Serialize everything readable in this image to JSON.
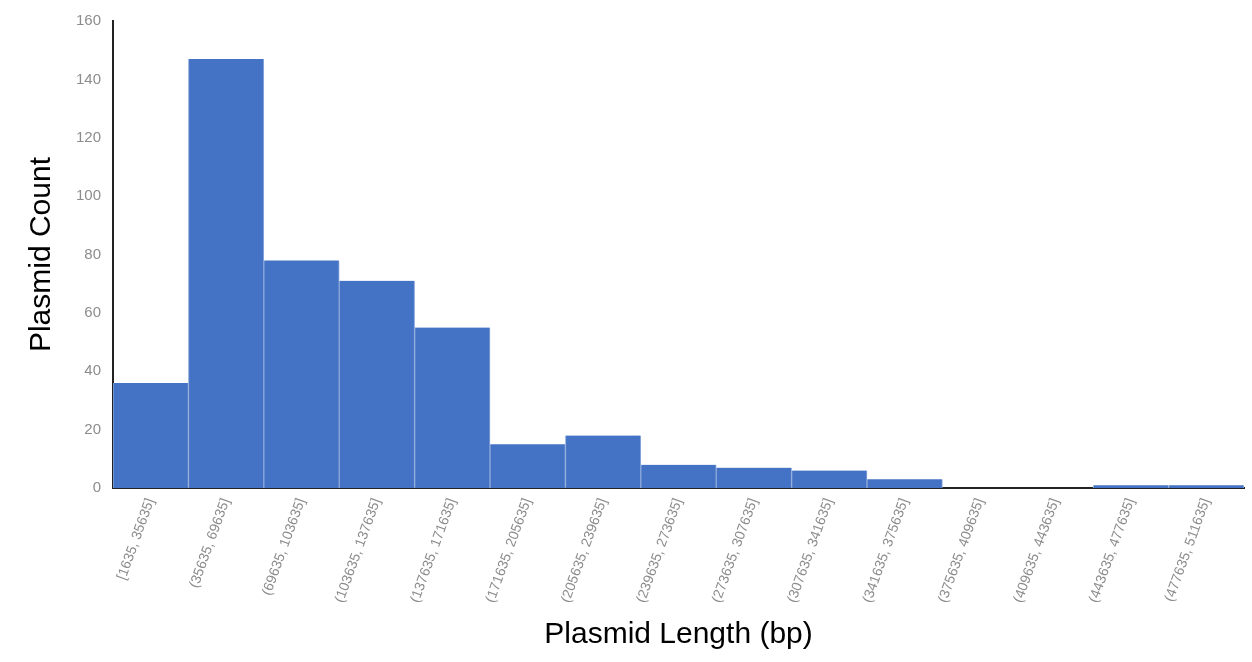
{
  "chart_data": {
    "type": "bar",
    "xlabel": "Plasmid Length (bp)",
    "ylabel": "Plasmid Count",
    "categories": [
      "[1635, 35635]",
      "(35635, 69635]",
      "(69635, 103635]",
      "(103635, 137635]",
      "(137635, 171635]",
      "(171635, 205635]",
      "(205635, 239635]",
      "(239635, 273635]",
      "(273635, 307635]",
      "(307635, 341635]",
      "(341635, 375635]",
      "(375635, 409635]",
      "(409635, 443635]",
      "(443635, 477635]",
      "(477635, 511635]"
    ],
    "values": [
      36,
      147,
      78,
      71,
      55,
      15,
      18,
      8,
      7,
      6,
      3,
      0,
      0,
      1,
      1
    ],
    "color": "#4472c4",
    "ylim": [
      0,
      160
    ],
    "yticks": [
      0,
      20,
      40,
      60,
      80,
      100,
      120,
      140,
      160
    ],
    "grid": false,
    "legend": false
  }
}
